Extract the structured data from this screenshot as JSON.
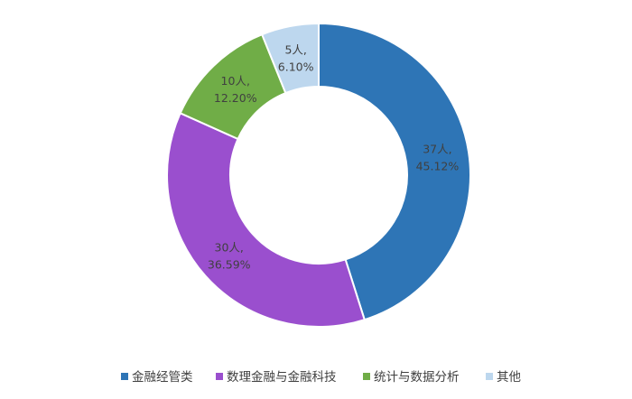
{
  "chart_data": {
    "type": "pie",
    "variant": "donut",
    "title": "",
    "categories": [
      "金融经管类",
      "数理金融与金融科技",
      "统计与数据分析",
      "其他"
    ],
    "counts_label": [
      "37人,",
      "30人,",
      "10人,",
      "5人,"
    ],
    "percent_label": [
      "45.12%",
      "36.59%",
      "12.20%",
      "6.10%"
    ],
    "values": [
      45.12,
      36.59,
      12.2,
      6.1
    ],
    "counts": [
      37,
      30,
      10,
      5
    ],
    "colors": [
      "#2e75b6",
      "#9a4fce",
      "#70ad47",
      "#bdd7ee"
    ],
    "legend_position": "bottom"
  }
}
